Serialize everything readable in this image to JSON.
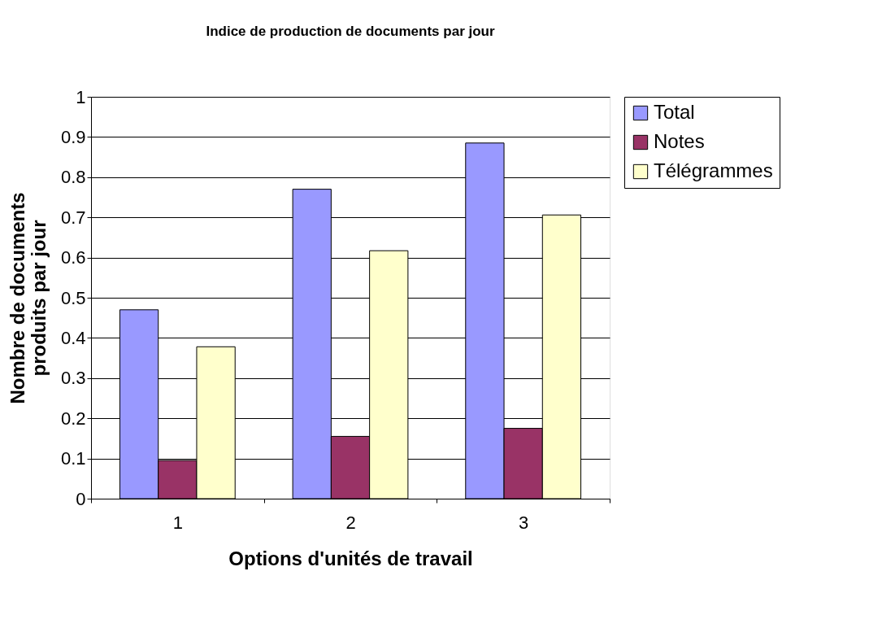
{
  "chart_data": {
    "type": "bar",
    "title": "Indice de production de documents par jour",
    "xlabel": "Options d'unités de travail",
    "ylabel": "Nombre de documents produits par jour",
    "categories": [
      "1",
      "2",
      "3"
    ],
    "series": [
      {
        "name": "Total",
        "color": "#9999ff",
        "values": [
          0.47,
          0.77,
          0.885
        ]
      },
      {
        "name": "Notes",
        "color": "#993366",
        "values": [
          0.095,
          0.155,
          0.175
        ]
      },
      {
        "name": "Télégrammes",
        "color": "#ffffcc",
        "values": [
          0.378,
          0.617,
          0.706
        ]
      }
    ],
    "ylim": [
      0,
      1
    ],
    "yticks": [
      0,
      0.1,
      0.2,
      0.3,
      0.4,
      0.5,
      0.6,
      0.7,
      0.8,
      0.9,
      1
    ],
    "grid": "y",
    "legend": "right"
  }
}
